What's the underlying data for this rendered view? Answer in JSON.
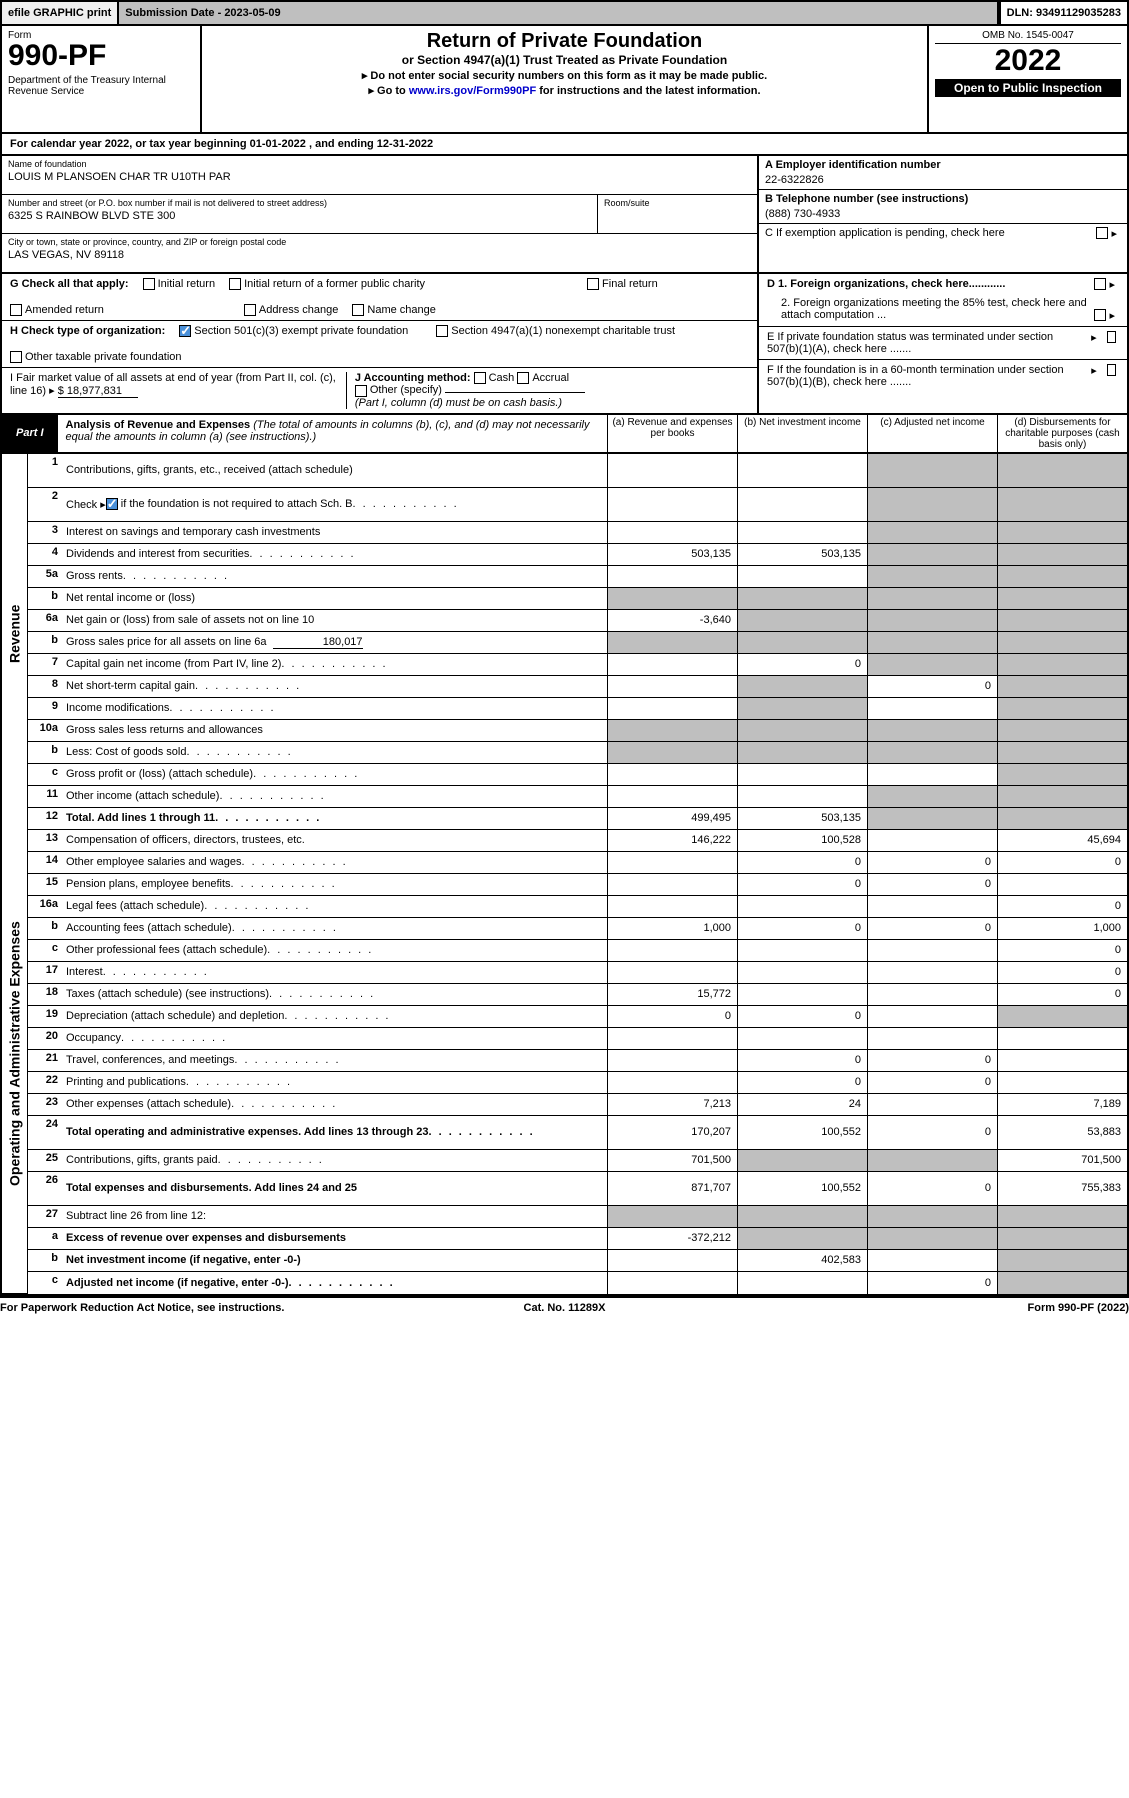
{
  "topbar": {
    "efile": "efile GRAPHIC print",
    "subdate_label": "Submission Date - 2023-05-09",
    "dln": "DLN: 93491129035283"
  },
  "header": {
    "form_word": "Form",
    "form_no": "990-PF",
    "dept": "Department of the Treasury\nInternal Revenue Service",
    "title": "Return of Private Foundation",
    "subtitle": "or Section 4947(a)(1) Trust Treated as Private Foundation",
    "instr1": "▸ Do not enter social security numbers on this form as it may be made public.",
    "instr2_pre": "▸ Go to ",
    "instr2_link": "www.irs.gov/Form990PF",
    "instr2_post": " for instructions and the latest information.",
    "omb": "OMB No. 1545-0047",
    "year": "2022",
    "opub": "Open to Public Inspection"
  },
  "calyear": "For calendar year 2022, or tax year beginning 01-01-2022          , and ending 12-31-2022",
  "id": {
    "name_lbl": "Name of foundation",
    "name_val": "LOUIS M PLANSOEN CHAR TR U10TH PAR",
    "addr_lbl": "Number and street (or P.O. box number if mail is not delivered to street address)",
    "addr_val": "6325 S RAINBOW BLVD STE 300",
    "room_lbl": "Room/suite",
    "city_lbl": "City or town, state or province, country, and ZIP or foreign postal code",
    "city_val": "LAS VEGAS, NV  89118",
    "ein_lbl": "A Employer identification number",
    "ein_val": "22-6322826",
    "tel_lbl": "B Telephone number (see instructions)",
    "tel_val": "(888) 730-4933",
    "c_lbl": "C If exemption application is pending, check here",
    "d1": "D 1. Foreign organizations, check here............",
    "d2": "2. Foreign organizations meeting the 85% test, check here and attach computation ...",
    "e_lbl": "E  If private foundation status was terminated under section 507(b)(1)(A), check here .......",
    "f_lbl": "F  If the foundation is in a 60-month termination under section 507(b)(1)(B), check here .......",
    "g_lbl": "G Check all that apply:",
    "g_initial": "Initial return",
    "g_initial_former": "Initial return of a former public charity",
    "g_final": "Final return",
    "g_amended": "Amended return",
    "g_addr": "Address change",
    "g_name": "Name change",
    "h_lbl": "H Check type of organization:",
    "h_501": "Section 501(c)(3) exempt private foundation",
    "h_4947": "Section 4947(a)(1) nonexempt charitable trust",
    "h_other_tax": "Other taxable private foundation",
    "i_lbl": "I Fair market value of all assets at end of year (from Part II, col. (c), line 16) ▸",
    "i_val": "$  18,977,831",
    "j_lbl": "J Accounting method:",
    "j_cash": "Cash",
    "j_accrual": "Accrual",
    "j_other": "Other (specify)",
    "j_note": "(Part I, column (d) must be on cash basis.)"
  },
  "part1": {
    "badge": "Part I",
    "title": "Analysis of Revenue and Expenses",
    "desc": " (The total of amounts in columns (b), (c), and (d) may not necessarily equal the amounts in column (a) (see instructions).)",
    "cols": {
      "a": "(a)  Revenue and expenses per books",
      "b": "(b)  Net investment income",
      "c": "(c)  Adjusted net income",
      "d": "(d)  Disbursements for charitable purposes (cash basis only)"
    }
  },
  "side_labels": {
    "rev": "Revenue",
    "exp": "Operating and Administrative Expenses"
  },
  "rows": {
    "r1": {
      "n": "1",
      "d": "Contributions, gifts, grants, etc., received (attach schedule)"
    },
    "r2": {
      "n": "2",
      "d": "Check ▸",
      "d2": " if the foundation is not required to attach Sch. B"
    },
    "r3": {
      "n": "3",
      "d": "Interest on savings and temporary cash investments"
    },
    "r4": {
      "n": "4",
      "d": "Dividends and interest from securities",
      "a": "503,135",
      "b": "503,135"
    },
    "r5a": {
      "n": "5a",
      "d": "Gross rents"
    },
    "r5b": {
      "n": "b",
      "d": "Net rental income or (loss)"
    },
    "r6a": {
      "n": "6a",
      "d": "Net gain or (loss) from sale of assets not on line 10",
      "a": "-3,640"
    },
    "r6b": {
      "n": "b",
      "d": "Gross sales price for all assets on line 6a",
      "inline": "180,017"
    },
    "r7": {
      "n": "7",
      "d": "Capital gain net income (from Part IV, line 2)",
      "b": "0"
    },
    "r8": {
      "n": "8",
      "d": "Net short-term capital gain",
      "c": "0"
    },
    "r9": {
      "n": "9",
      "d": "Income modifications"
    },
    "r10a": {
      "n": "10a",
      "d": "Gross sales less returns and allowances"
    },
    "r10b": {
      "n": "b",
      "d": "Less: Cost of goods sold"
    },
    "r10c": {
      "n": "c",
      "d": "Gross profit or (loss) (attach schedule)"
    },
    "r11": {
      "n": "11",
      "d": "Other income (attach schedule)"
    },
    "r12": {
      "n": "12",
      "d": "Total. Add lines 1 through 11",
      "a": "499,495",
      "b": "503,135"
    },
    "r13": {
      "n": "13",
      "d": "Compensation of officers, directors, trustees, etc.",
      "a": "146,222",
      "b": "100,528",
      "dd": "45,694"
    },
    "r14": {
      "n": "14",
      "d": "Other employee salaries and wages",
      "b": "0",
      "c": "0",
      "dd": "0"
    },
    "r15": {
      "n": "15",
      "d": "Pension plans, employee benefits",
      "b": "0",
      "c": "0"
    },
    "r16a": {
      "n": "16a",
      "d": "Legal fees (attach schedule)",
      "dd": "0"
    },
    "r16b": {
      "n": "b",
      "d": "Accounting fees (attach schedule)",
      "a": "1,000",
      "b": "0",
      "c": "0",
      "dd": "1,000"
    },
    "r16c": {
      "n": "c",
      "d": "Other professional fees (attach schedule)",
      "dd": "0"
    },
    "r17": {
      "n": "17",
      "d": "Interest",
      "dd": "0"
    },
    "r18": {
      "n": "18",
      "d": "Taxes (attach schedule) (see instructions)",
      "a": "15,772",
      "dd": "0"
    },
    "r19": {
      "n": "19",
      "d": "Depreciation (attach schedule) and depletion",
      "a": "0",
      "b": "0"
    },
    "r20": {
      "n": "20",
      "d": "Occupancy"
    },
    "r21": {
      "n": "21",
      "d": "Travel, conferences, and meetings",
      "b": "0",
      "c": "0"
    },
    "r22": {
      "n": "22",
      "d": "Printing and publications",
      "b": "0",
      "c": "0"
    },
    "r23": {
      "n": "23",
      "d": "Other expenses (attach schedule)",
      "a": "7,213",
      "b": "24",
      "dd": "7,189"
    },
    "r24": {
      "n": "24",
      "d": "Total operating and administrative expenses. Add lines 13 through 23",
      "a": "170,207",
      "b": "100,552",
      "c": "0",
      "dd": "53,883"
    },
    "r25": {
      "n": "25",
      "d": "Contributions, gifts, grants paid",
      "a": "701,500",
      "dd": "701,500"
    },
    "r26": {
      "n": "26",
      "d": "Total expenses and disbursements. Add lines 24 and 25",
      "a": "871,707",
      "b": "100,552",
      "c": "0",
      "dd": "755,383"
    },
    "r27": {
      "n": "27",
      "d": "Subtract line 26 from line 12:"
    },
    "r27a": {
      "n": "a",
      "d": "Excess of revenue over expenses and disbursements",
      "a": "-372,212"
    },
    "r27b": {
      "n": "b",
      "d": "Net investment income (if negative, enter -0-)",
      "b": "402,583"
    },
    "r27c": {
      "n": "c",
      "d": "Adjusted net income (if negative, enter -0-)",
      "c": "0"
    }
  },
  "footer": {
    "left": "For Paperwork Reduction Act Notice, see instructions.",
    "center": "Cat. No. 11289X",
    "right": "Form 990-PF (2022)"
  },
  "colors": {
    "shade": "#bfbfbf"
  }
}
